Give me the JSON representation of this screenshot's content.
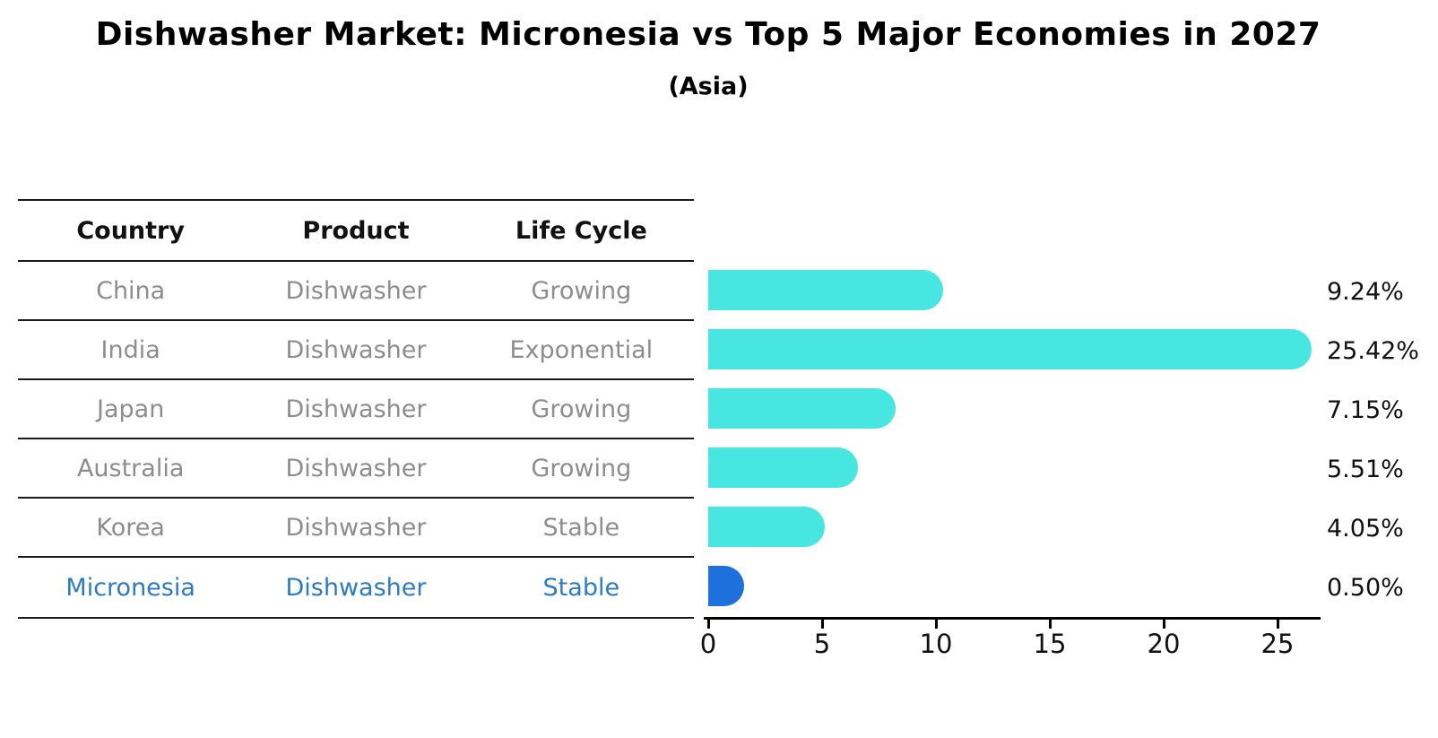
{
  "title": "Dishwasher Market: Micronesia vs Top 5 Major Economies in 2027",
  "subtitle": "(Asia)",
  "table": {
    "headers": [
      "Country",
      "Product",
      "Life Cycle"
    ],
    "rows": [
      {
        "country": "China",
        "product": "Dishwasher",
        "life_cycle": "Growing",
        "highlight": false
      },
      {
        "country": "India",
        "product": "Dishwasher",
        "life_cycle": "Exponential",
        "highlight": false
      },
      {
        "country": "Japan",
        "product": "Dishwasher",
        "life_cycle": "Growing",
        "highlight": false
      },
      {
        "country": "Australia",
        "product": "Dishwasher",
        "life_cycle": "Growing",
        "highlight": false
      },
      {
        "country": "Korea",
        "product": "Dishwasher",
        "life_cycle": "Stable",
        "highlight": false
      },
      {
        "country": "Micronesia",
        "product": "Dishwasher",
        "life_cycle": "Stable",
        "highlight": true
      }
    ]
  },
  "chart_data": {
    "type": "bar",
    "orientation": "horizontal",
    "title": "Dishwasher Market: Micronesia vs Top 5 Major Economies in 2027",
    "subtitle": "(Asia)",
    "categories": [
      "China",
      "India",
      "Japan",
      "Australia",
      "Korea",
      "Micronesia"
    ],
    "values": [
      9.24,
      25.42,
      7.15,
      5.51,
      4.05,
      0.5
    ],
    "value_labels": [
      "9.24%",
      "25.42%",
      "7.15%",
      "5.51%",
      "4.05%",
      "0.50%"
    ],
    "xticks": [
      0,
      5,
      10,
      15,
      20,
      25
    ],
    "xlim": [
      0,
      27
    ],
    "grid": false,
    "legend": false,
    "highlight_index": 5
  },
  "colors": {
    "bar_cyan": "#47E6E0",
    "bar_blue": "#1E70DD",
    "highlight_text": "#2c7cc4",
    "muted_text": "#8d8d8d",
    "line": "#1a1a1a"
  }
}
